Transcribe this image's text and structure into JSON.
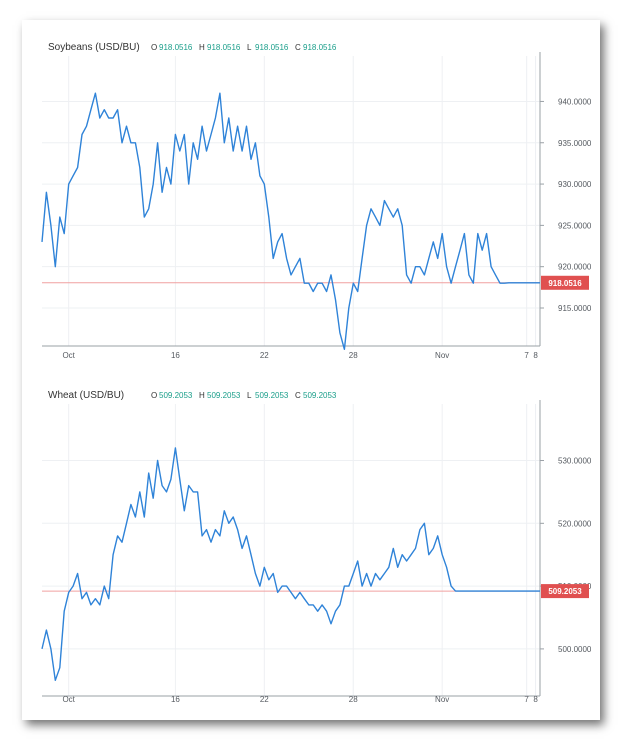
{
  "chart_data": [
    {
      "type": "line",
      "title": "Soybeans (USD/BU)",
      "ohlc": {
        "o_label": "O",
        "o_value": "918.0516",
        "h_label": "H",
        "h_value": "918.0516",
        "l_label": "L",
        "l_value": "918.0516",
        "c_label": "C",
        "c_value": "918.0516"
      },
      "x_ticks": [
        {
          "label": "Oct",
          "x": 3
        },
        {
          "label": "16",
          "x": 15
        },
        {
          "label": "22",
          "x": 25
        },
        {
          "label": "28",
          "x": 35
        },
        {
          "label": "Nov",
          "x": 45
        },
        {
          "label": "7",
          "x": 54.5
        },
        {
          "label": "8",
          "x": 55.5
        }
      ],
      "y_ticks": [
        {
          "label": "915.0000",
          "value": 915
        },
        {
          "label": "920.0000",
          "value": 920
        },
        {
          "label": "925.0000",
          "value": 925
        },
        {
          "label": "930.0000",
          "value": 930
        },
        {
          "label": "935.0000",
          "value": 935
        },
        {
          "label": "940.0000",
          "value": 940
        }
      ],
      "ylim": [
        910.4,
        945.5
      ],
      "xlim": [
        0,
        56
      ],
      "last_value": 918.0516,
      "last_label": "918.0516",
      "line_color": "#2f83d8",
      "price_line_color": "#f0a0a0",
      "badge_color": "#e05050",
      "series": [
        {
          "x": [
            0,
            0.5,
            1,
            1.5,
            2,
            2.5,
            3,
            3.5,
            4,
            4.5,
            5,
            5.5,
            6,
            6.5,
            7,
            7.5,
            8,
            8.5,
            9,
            9.5,
            10,
            10.5,
            11,
            11.5,
            12,
            12.5,
            13,
            13.5,
            14,
            14.5,
            15,
            15.5,
            16,
            16.5,
            17,
            17.5,
            18,
            18.5,
            19,
            19.5,
            20,
            20.5,
            21,
            21.5,
            22,
            22.5,
            23,
            23.5,
            24,
            24.5,
            25,
            25.5,
            26,
            26.5,
            27,
            27.5,
            28,
            28.5,
            29,
            29.5,
            30,
            30.5,
            31,
            31.5,
            32,
            32.5,
            33,
            33.5,
            34,
            34.5,
            35,
            35.5,
            36,
            36.5,
            37,
            37.5,
            38,
            38.5,
            39,
            39.5,
            40,
            40.5,
            41,
            41.5,
            42,
            42.5,
            43,
            43.5,
            44,
            44.5,
            45,
            45.5,
            46,
            46.5,
            47,
            47.5,
            48,
            48.5,
            49,
            49.5,
            50,
            50.5,
            51,
            51.5,
            52,
            52.5,
            53,
            53.5,
            54,
            54.5,
            55,
            55.5,
            56
          ],
          "y": [
            923,
            929,
            925,
            920,
            926,
            924,
            930,
            931,
            932,
            936,
            937,
            939,
            941,
            938,
            939,
            938,
            938,
            939,
            935,
            937,
            935,
            935,
            932,
            926,
            927,
            930,
            935,
            929,
            932,
            930,
            936,
            934,
            936,
            930,
            935,
            933,
            937,
            934,
            936,
            938,
            941,
            935,
            938,
            934,
            937,
            934,
            937,
            933,
            935,
            931,
            930,
            926,
            921,
            923,
            924,
            921,
            919,
            920,
            921,
            918,
            918,
            917,
            918,
            918,
            917,
            919,
            916,
            912,
            910,
            915,
            918,
            917,
            921,
            925,
            927,
            926,
            925,
            928,
            927,
            926,
            927,
            925,
            919,
            918,
            920,
            920,
            919,
            921,
            923,
            921,
            924,
            920,
            918,
            920,
            922,
            924,
            919,
            918,
            924,
            922,
            924,
            920,
            919,
            918,
            918,
            918.05,
            918.05,
            918.05,
            918.05,
            918.05,
            918.05,
            918.05,
            918.05
          ]
        }
      ]
    },
    {
      "type": "line",
      "title": "Wheat (USD/BU)",
      "ohlc": {
        "o_label": "O",
        "o_value": "509.2053",
        "h_label": "H",
        "h_value": "509.2053",
        "l_label": "L",
        "l_value": "509.2053",
        "c_label": "C",
        "c_value": "509.2053"
      },
      "x_ticks": [
        {
          "label": "Oct",
          "x": 3
        },
        {
          "label": "16",
          "x": 15
        },
        {
          "label": "22",
          "x": 25
        },
        {
          "label": "28",
          "x": 35
        },
        {
          "label": "Nov",
          "x": 45
        },
        {
          "label": "7",
          "x": 54.5
        },
        {
          "label": "8",
          "x": 55.5
        }
      ],
      "y_ticks": [
        {
          "label": "500.0000",
          "value": 500
        },
        {
          "label": "510.0000",
          "value": 510
        },
        {
          "label": "520.0000",
          "value": 520
        },
        {
          "label": "530.0000",
          "value": 530
        }
      ],
      "ylim": [
        492.5,
        539
      ],
      "xlim": [
        0,
        56
      ],
      "last_value": 509.2053,
      "last_label": "509.2053",
      "line_color": "#2f83d8",
      "price_line_color": "#f0a0a0",
      "badge_color": "#e05050",
      "series": [
        {
          "x": [
            0,
            0.5,
            1,
            1.5,
            2,
            2.5,
            3,
            3.5,
            4,
            4.5,
            5,
            5.5,
            6,
            6.5,
            7,
            7.5,
            8,
            8.5,
            9,
            9.5,
            10,
            10.5,
            11,
            11.5,
            12,
            12.5,
            13,
            13.5,
            14,
            14.5,
            15,
            15.5,
            16,
            16.5,
            17,
            17.5,
            18,
            18.5,
            19,
            19.5,
            20,
            20.5,
            21,
            21.5,
            22,
            22.5,
            23,
            23.5,
            24,
            24.5,
            25,
            25.5,
            26,
            26.5,
            27,
            27.5,
            28,
            28.5,
            29,
            29.5,
            30,
            30.5,
            31,
            31.5,
            32,
            32.5,
            33,
            33.5,
            34,
            34.5,
            35,
            35.5,
            36,
            36.5,
            37,
            37.5,
            38,
            38.5,
            39,
            39.5,
            40,
            40.5,
            41,
            41.5,
            42,
            42.5,
            43,
            43.5,
            44,
            44.5,
            45,
            45.5,
            46,
            46.5,
            47,
            47.5,
            48,
            48.5,
            49,
            49.5,
            50,
            50.5,
            51,
            51.5,
            52,
            52.5,
            53,
            53.5,
            54,
            54.5,
            55,
            55.5,
            56
          ],
          "y": [
            500,
            503,
            500,
            495,
            497,
            506,
            509,
            510,
            512,
            508,
            509,
            507,
            508,
            507,
            510,
            508,
            515,
            518,
            517,
            520,
            523,
            521,
            525,
            521,
            528,
            524,
            530,
            526,
            525,
            527,
            532,
            527,
            522,
            526,
            525,
            525,
            518,
            519,
            517,
            519,
            518,
            522,
            520,
            521,
            519,
            516,
            518,
            515,
            512,
            510,
            513,
            511,
            512,
            509,
            510,
            510,
            509,
            508,
            509,
            508,
            507,
            507,
            506,
            507,
            506,
            504,
            506,
            507,
            510,
            510,
            512,
            514,
            510,
            512,
            510,
            512,
            511,
            512,
            513,
            516,
            513,
            515,
            514,
            515,
            516,
            519,
            520,
            515,
            516,
            518,
            515,
            513,
            510,
            509.2,
            509.2,
            509.2,
            509.2,
            509.2,
            509.2,
            509.2,
            509.2,
            509.2,
            509.2,
            509.2,
            509.2,
            509.2,
            509.2,
            509.2,
            509.2,
            509.2,
            509.2,
            509.2,
            509.2
          ]
        }
      ]
    }
  ]
}
